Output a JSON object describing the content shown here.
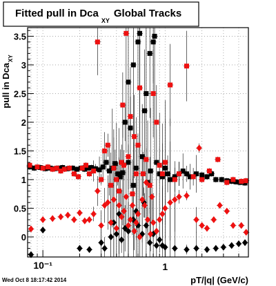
{
  "title": {
    "main": "Fitted pull in Dca",
    "subscript": "XY",
    "suffix": "Global Tracks"
  },
  "footer": {
    "timestamp": "Wed Oct  8 18:17:42 2014"
  },
  "chart_data": {
    "type": "scatter",
    "xlabel": "pT/|q|  (GeV/c)",
    "ylabel": "pull in Dca",
    "ylabel_sub": "XY",
    "xscale": "log",
    "xlim": [
      0.075,
      4.8
    ],
    "ylim": [
      -0.35,
      3.65
    ],
    "grid": true,
    "x_tick_labels": [
      "10⁻¹",
      "1"
    ],
    "y_ticks": [
      0,
      0.5,
      1,
      1.5,
      2,
      2.5,
      3,
      3.5
    ],
    "y_tick_labels": [
      "0",
      "0.5",
      "1",
      "1.5",
      "2",
      "2.5",
      "3",
      "3.5"
    ],
    "colors": {
      "black_series": "#000000",
      "red_series": "#ee1111",
      "frame": "#000000",
      "grid": "#999999"
    },
    "series": [
      {
        "marker": "square",
        "color": "#000000",
        "points": [
          [
            0.078,
            1.22
          ],
          [
            0.085,
            1.2
          ],
          [
            0.095,
            1.21
          ],
          [
            0.105,
            1.19
          ],
          [
            0.115,
            1.2
          ],
          [
            0.125,
            1.19
          ],
          [
            0.135,
            1.2
          ],
          [
            0.145,
            1.21
          ],
          [
            0.16,
            1.19
          ],
          [
            0.175,
            1.2
          ],
          [
            0.19,
            1.18
          ],
          [
            0.205,
            1.2
          ],
          [
            0.22,
            1.18
          ],
          [
            0.235,
            1.2
          ],
          [
            0.25,
            1.21
          ],
          [
            0.27,
            1.19
          ],
          [
            0.29,
            1.17
          ],
          [
            0.31,
            1.22
          ],
          [
            0.33,
            1.3
          ],
          [
            0.35,
            1.15
          ],
          [
            0.37,
            1.2
          ],
          [
            0.39,
            1.28
          ],
          [
            0.41,
            1.1
          ],
          [
            0.43,
            1.05
          ],
          [
            0.45,
            1.12
          ],
          [
            0.47,
            2.0
          ],
          [
            0.5,
            1.3
          ],
          [
            0.52,
            1.9
          ],
          [
            0.55,
            0.9
          ],
          [
            0.58,
            1.2
          ],
          [
            0.6,
            3.4
          ],
          [
            0.62,
            3.55
          ],
          [
            0.65,
            1.4
          ],
          [
            0.68,
            2.2
          ],
          [
            0.72,
            0.95
          ],
          [
            0.76,
            1.15
          ],
          [
            0.8,
            3.4
          ],
          [
            0.82,
            3.5
          ],
          [
            0.85,
            1.3
          ],
          [
            0.9,
            1.1
          ],
          [
            0.95,
            1.05
          ],
          [
            1.0,
            1.2
          ],
          [
            1.05,
            1.1
          ],
          [
            1.1,
            1.0
          ],
          [
            1.2,
            1.05
          ],
          [
            1.3,
            1.1
          ],
          [
            1.4,
            1.15
          ],
          [
            1.5,
            1.1
          ],
          [
            1.6,
            1.05
          ],
          [
            1.8,
            1.1
          ],
          [
            2.0,
            1.08
          ],
          [
            2.2,
            1.05
          ],
          [
            2.4,
            1.1
          ],
          [
            2.6,
            1.0
          ],
          [
            2.9,
            1.0
          ],
          [
            3.2,
            0.98
          ],
          [
            3.5,
            0.97
          ],
          [
            3.8,
            0.96
          ],
          [
            4.1,
            0.95
          ],
          [
            4.5,
            0.94
          ],
          [
            0.5,
            2.7
          ],
          [
            0.55,
            3.0
          ],
          [
            0.7,
            2.5
          ],
          [
            0.75,
            3.2
          ]
        ]
      },
      {
        "marker": "diamond",
        "color": "#000000",
        "points": [
          [
            0.08,
            -0.31
          ],
          [
            0.2,
            -0.2
          ],
          [
            0.24,
            -0.22
          ],
          [
            0.3,
            -0.1
          ],
          [
            0.32,
            -0.2
          ],
          [
            0.36,
            0.0
          ],
          [
            0.4,
            0.05
          ],
          [
            0.44,
            -0.05
          ],
          [
            0.47,
            0.15
          ],
          [
            0.5,
            0.1
          ],
          [
            0.55,
            0.3
          ],
          [
            0.6,
            0.2
          ],
          [
            0.65,
            0.05
          ],
          [
            0.7,
            0.2
          ],
          [
            0.75,
            -0.1
          ],
          [
            0.8,
            0.05
          ],
          [
            0.85,
            -0.15
          ],
          [
            0.9,
            -0.05
          ],
          [
            0.95,
            -0.15
          ],
          [
            1.0,
            -0.18
          ],
          [
            1.2,
            -0.2
          ],
          [
            1.5,
            -0.22
          ],
          [
            1.8,
            -0.2
          ],
          [
            2.2,
            -0.22
          ],
          [
            2.6,
            -0.2
          ],
          [
            3.0,
            -0.18
          ],
          [
            3.5,
            -0.15
          ],
          [
            4.0,
            -0.12
          ],
          [
            4.5,
            -0.1
          ],
          [
            0.38,
            0.25
          ],
          [
            0.42,
            0.4
          ],
          [
            0.58,
            0.45
          ],
          [
            0.67,
            0.6
          ],
          [
            0.1,
            0.12
          ]
        ]
      },
      {
        "marker": "square",
        "color": "#ee1111",
        "points": [
          [
            0.078,
            1.25
          ],
          [
            0.09,
            1.22
          ],
          [
            0.1,
            1.2
          ],
          [
            0.11,
            1.22
          ],
          [
            0.12,
            1.18
          ],
          [
            0.13,
            1.2
          ],
          [
            0.14,
            1.15
          ],
          [
            0.15,
            1.18
          ],
          [
            0.165,
            1.2
          ],
          [
            0.18,
            1.1
          ],
          [
            0.195,
            1.05
          ],
          [
            0.21,
            1.2
          ],
          [
            0.225,
            1.25
          ],
          [
            0.24,
            1.1
          ],
          [
            0.26,
            1.15
          ],
          [
            0.28,
            3.4
          ],
          [
            0.3,
            1.0
          ],
          [
            0.32,
            1.5
          ],
          [
            0.34,
            1.6
          ],
          [
            0.36,
            0.9
          ],
          [
            0.38,
            1.2
          ],
          [
            0.4,
            1.0
          ],
          [
            0.42,
            0.8
          ],
          [
            0.44,
            1.3
          ],
          [
            0.46,
            1.25
          ],
          [
            0.48,
            3.55
          ],
          [
            0.5,
            1.4
          ],
          [
            0.52,
            2.1
          ],
          [
            0.54,
            0.75
          ],
          [
            0.56,
            1.75
          ],
          [
            0.58,
            1.1
          ],
          [
            0.62,
            2.6
          ],
          [
            0.66,
            1.1
          ],
          [
            0.7,
            1.35
          ],
          [
            0.75,
            0.9
          ],
          [
            0.8,
            2.5
          ],
          [
            0.85,
            2.0
          ],
          [
            0.9,
            1.25
          ],
          [
            0.95,
            1.1
          ],
          [
            1.0,
            1.3
          ],
          [
            1.1,
            2.65
          ],
          [
            1.2,
            1.0
          ],
          [
            1.3,
            1.1
          ],
          [
            1.5,
            2.98
          ],
          [
            1.7,
            1.05
          ],
          [
            2.0,
            1.0
          ],
          [
            2.3,
            1.15
          ],
          [
            2.7,
            1.35
          ],
          [
            3.2,
            0.95
          ],
          [
            3.6,
            1.0
          ],
          [
            4.2,
            0.97
          ],
          [
            4.6,
            0.98
          ],
          [
            0.45,
            2.3
          ],
          [
            0.6,
            1.6
          ]
        ]
      },
      {
        "marker": "diamond",
        "color": "#ee1111",
        "points": [
          [
            0.08,
            0.14
          ],
          [
            0.1,
            0.3
          ],
          [
            0.12,
            0.32
          ],
          [
            0.14,
            0.35
          ],
          [
            0.16,
            0.38
          ],
          [
            0.18,
            0.3
          ],
          [
            0.2,
            0.42
          ],
          [
            0.22,
            0.28
          ],
          [
            0.24,
            0.3
          ],
          [
            0.26,
            0.4
          ],
          [
            0.28,
            0.8
          ],
          [
            0.3,
            0.2
          ],
          [
            0.32,
            0.55
          ],
          [
            0.34,
            0.6
          ],
          [
            0.36,
            0.25
          ],
          [
            0.38,
            0.65
          ],
          [
            0.4,
            0.15
          ],
          [
            0.42,
            0.55
          ],
          [
            0.44,
            0.35
          ],
          [
            0.46,
            0.45
          ],
          [
            0.48,
            0.7
          ],
          [
            0.5,
            0.2
          ],
          [
            0.52,
            0.3
          ],
          [
            0.54,
            0.55
          ],
          [
            0.56,
            0.1
          ],
          [
            0.58,
            0.25
          ],
          [
            0.6,
            0.4
          ],
          [
            0.62,
            0.0
          ],
          [
            0.65,
            0.65
          ],
          [
            0.68,
            0.55
          ],
          [
            0.72,
            0.3
          ],
          [
            0.76,
            0.05
          ],
          [
            0.8,
            0.25
          ],
          [
            0.85,
            0.1
          ],
          [
            0.9,
            0.3
          ],
          [
            0.95,
            0.4
          ],
          [
            1.0,
            0.5
          ],
          [
            1.1,
            0.6
          ],
          [
            1.2,
            0.65
          ],
          [
            1.3,
            0.7
          ],
          [
            1.5,
            0.72
          ],
          [
            1.8,
            0.3
          ],
          [
            2.0,
            0.2
          ],
          [
            2.2,
            0.15
          ],
          [
            2.5,
            0.3
          ],
          [
            2.8,
            0.55
          ],
          [
            3.2,
            0.45
          ],
          [
            3.6,
            0.2
          ],
          [
            4.2,
            0.2
          ],
          [
            4.6,
            0.08
          ],
          [
            0.7,
            0.95
          ],
          [
            0.78,
            0.7
          ],
          [
            1.9,
            1.55
          ]
        ]
      }
    ]
  }
}
